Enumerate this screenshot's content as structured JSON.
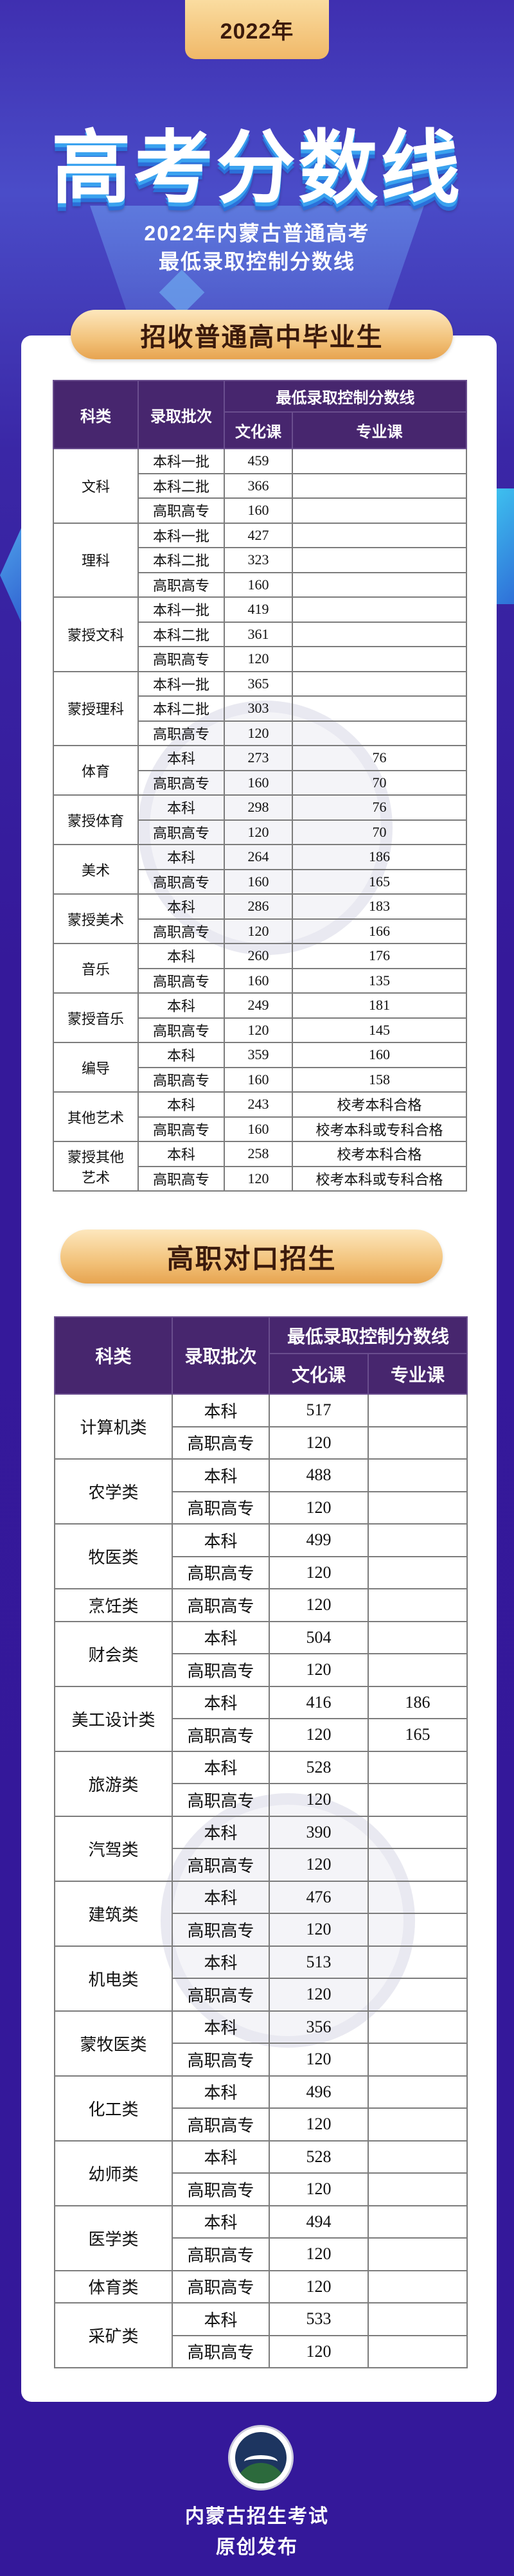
{
  "header": {
    "year_badge": "2022年",
    "title": "高考分数线",
    "subtitle_line1": "2022年内蒙古普通高考",
    "subtitle_line2": "最低录取控制分数线"
  },
  "colors": {
    "background": "#34189a",
    "table_header": "#47266e",
    "pill": "#f2c27a",
    "title_shadow": "#3aa2ef"
  },
  "section1": {
    "title": "招收普通高中毕业生",
    "headers": {
      "category": "科类",
      "batch": "录取批次",
      "score_line": "最低录取控制分数线",
      "culture": "文化课",
      "major": "专业课"
    },
    "groups": [
      {
        "category": "文科",
        "rows": [
          [
            "本科一批",
            "459",
            ""
          ],
          [
            "本科二批",
            "366",
            ""
          ],
          [
            "高职高专",
            "160",
            ""
          ]
        ]
      },
      {
        "category": "理科",
        "rows": [
          [
            "本科一批",
            "427",
            ""
          ],
          [
            "本科二批",
            "323",
            ""
          ],
          [
            "高职高专",
            "160",
            ""
          ]
        ]
      },
      {
        "category": "蒙授文科",
        "rows": [
          [
            "本科一批",
            "419",
            ""
          ],
          [
            "本科二批",
            "361",
            ""
          ],
          [
            "高职高专",
            "120",
            ""
          ]
        ]
      },
      {
        "category": "蒙授理科",
        "rows": [
          [
            "本科一批",
            "365",
            ""
          ],
          [
            "本科二批",
            "303",
            ""
          ],
          [
            "高职高专",
            "120",
            ""
          ]
        ]
      },
      {
        "category": "体育",
        "rows": [
          [
            "本科",
            "273",
            "76"
          ],
          [
            "高职高专",
            "160",
            "70"
          ]
        ]
      },
      {
        "category": "蒙授体育",
        "rows": [
          [
            "本科",
            "298",
            "76"
          ],
          [
            "高职高专",
            "120",
            "70"
          ]
        ]
      },
      {
        "category": "美术",
        "rows": [
          [
            "本科",
            "264",
            "186"
          ],
          [
            "高职高专",
            "160",
            "165"
          ]
        ]
      },
      {
        "category": "蒙授美术",
        "rows": [
          [
            "本科",
            "286",
            "183"
          ],
          [
            "高职高专",
            "120",
            "166"
          ]
        ]
      },
      {
        "category": "音乐",
        "rows": [
          [
            "本科",
            "260",
            "176"
          ],
          [
            "高职高专",
            "160",
            "135"
          ]
        ]
      },
      {
        "category": "蒙授音乐",
        "rows": [
          [
            "本科",
            "249",
            "181"
          ],
          [
            "高职高专",
            "120",
            "145"
          ]
        ]
      },
      {
        "category": "编导",
        "rows": [
          [
            "本科",
            "359",
            "160"
          ],
          [
            "高职高专",
            "160",
            "158"
          ]
        ]
      },
      {
        "category": "其他艺术",
        "rows": [
          [
            "本科",
            "243",
            "校考本科合格"
          ],
          [
            "高职高专",
            "160",
            "校考本科或专科合格"
          ]
        ]
      },
      {
        "category": "蒙授其他艺术",
        "rows": [
          [
            "本科",
            "258",
            "校考本科合格"
          ],
          [
            "高职高专",
            "120",
            "校考本科或专科合格"
          ]
        ]
      }
    ]
  },
  "section2": {
    "title": "高职对口招生",
    "headers": {
      "category": "科类",
      "batch": "录取批次",
      "score_line": "最低录取控制分数线",
      "culture": "文化课",
      "major": "专业课"
    },
    "groups": [
      {
        "category": "计算机类",
        "rows": [
          [
            "本科",
            "517",
            ""
          ],
          [
            "高职高专",
            "120",
            ""
          ]
        ]
      },
      {
        "category": "农学类",
        "rows": [
          [
            "本科",
            "488",
            ""
          ],
          [
            "高职高专",
            "120",
            ""
          ]
        ]
      },
      {
        "category": "牧医类",
        "rows": [
          [
            "本科",
            "499",
            ""
          ],
          [
            "高职高专",
            "120",
            ""
          ]
        ]
      },
      {
        "category": "烹饪类",
        "rows": [
          [
            "高职高专",
            "120",
            ""
          ]
        ]
      },
      {
        "category": "财会类",
        "rows": [
          [
            "本科",
            "504",
            ""
          ],
          [
            "高职高专",
            "120",
            ""
          ]
        ]
      },
      {
        "category": "美工设计类",
        "rows": [
          [
            "本科",
            "416",
            "186"
          ],
          [
            "高职高专",
            "120",
            "165"
          ]
        ]
      },
      {
        "category": "旅游类",
        "rows": [
          [
            "本科",
            "528",
            ""
          ],
          [
            "高职高专",
            "120",
            ""
          ]
        ]
      },
      {
        "category": "汽驾类",
        "rows": [
          [
            "本科",
            "390",
            ""
          ],
          [
            "高职高专",
            "120",
            ""
          ]
        ]
      },
      {
        "category": "建筑类",
        "rows": [
          [
            "本科",
            "476",
            ""
          ],
          [
            "高职高专",
            "120",
            ""
          ]
        ]
      },
      {
        "category": "机电类",
        "rows": [
          [
            "本科",
            "513",
            ""
          ],
          [
            "高职高专",
            "120",
            ""
          ]
        ]
      },
      {
        "category": "蒙牧医类",
        "rows": [
          [
            "本科",
            "356",
            ""
          ],
          [
            "高职高专",
            "120",
            ""
          ]
        ]
      },
      {
        "category": "化工类",
        "rows": [
          [
            "本科",
            "496",
            ""
          ],
          [
            "高职高专",
            "120",
            ""
          ]
        ]
      },
      {
        "category": "幼师类",
        "rows": [
          [
            "本科",
            "528",
            ""
          ],
          [
            "高职高专",
            "120",
            ""
          ]
        ]
      },
      {
        "category": "医学类",
        "rows": [
          [
            "本科",
            "494",
            ""
          ],
          [
            "高职高专",
            "120",
            ""
          ]
        ]
      },
      {
        "category": "体育类",
        "rows": [
          [
            "高职高专",
            "120",
            ""
          ]
        ]
      },
      {
        "category": "采矿类",
        "rows": [
          [
            "本科",
            "533",
            ""
          ],
          [
            "高职高专",
            "120",
            ""
          ]
        ]
      }
    ]
  },
  "footer": {
    "logo_icon": "inner-mongolia-admissions-logo",
    "org_name": "内蒙古招生考试",
    "tagline": "原创发布"
  }
}
